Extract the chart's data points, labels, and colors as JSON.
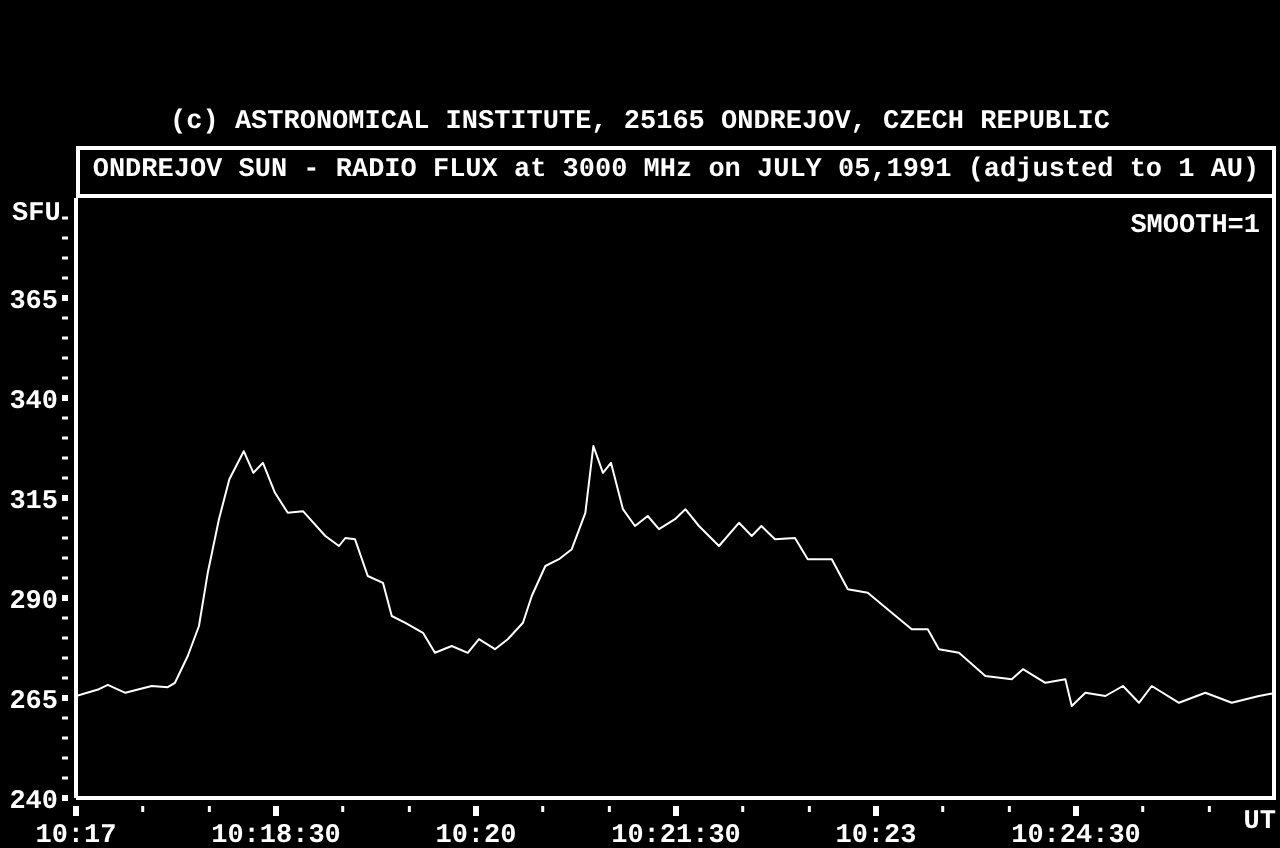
{
  "chart_data": {
    "type": "line",
    "title": "ONDREJOV SUN - RADIO FLUX at 3000 MHz on JULY 05,1991 (adjusted to 1 AU)",
    "annotations": [
      "(c) ASTRONOMICAL INSTITUTE, 25165 ONDREJOV, CZECH REPUBLIC",
      "SMOOTH=1"
    ],
    "xlabel": "UT",
    "ylabel": "SFU",
    "marker": "none",
    "line_style": "solid",
    "x": [
      10.28333,
      10.2862,
      10.2873,
      10.2895,
      10.2912,
      10.2928,
      10.2948,
      10.2957,
      10.2973,
      10.2987,
      10.2998,
      10.3012,
      10.3025,
      10.3043,
      10.3055,
      10.3067,
      10.3082,
      10.3098,
      10.3117,
      10.3145,
      10.3162,
      10.317,
      10.3182,
      10.3198,
      10.3217,
      10.3228,
      10.3245,
      10.3267,
      10.3282,
      10.3303,
      10.3323,
      10.3337,
      10.3357,
      10.3373,
      10.3392,
      10.3403,
      10.342,
      10.3437,
      10.3453,
      10.347,
      10.348,
      10.3492,
      10.3502,
      10.3517,
      10.3532,
      10.3548,
      10.3562,
      10.3582,
      10.3595,
      10.3612,
      10.3637,
      10.3662,
      10.3678,
      10.369,
      10.3707,
      10.3732,
      10.3748,
      10.3778,
      10.3798,
      10.3823,
      10.3853,
      10.3878,
      10.3898,
      10.3912,
      10.3937,
      10.397,
      10.4003,
      10.4017,
      10.4045,
      10.407,
      10.4078,
      10.4095,
      10.412,
      10.4142,
      10.4162,
      10.4178,
      10.4212,
      10.4245,
      10.4278,
      10.4312,
      10.4333
    ],
    "series": [
      {
        "color": "#ffffff",
        "values": [
          265.5,
          267.2,
          268.3,
          266.3,
          267.2,
          268,
          267.7,
          268.8,
          275.5,
          283,
          296.3,
          309.7,
          319.7,
          326.7,
          321.3,
          323.8,
          316.3,
          311.3,
          311.7,
          305.5,
          303,
          305,
          304.7,
          295.5,
          293.8,
          285.5,
          283.8,
          281.3,
          276.3,
          278,
          276.3,
          279.7,
          277.2,
          279.7,
          283.8,
          290.5,
          298,
          299.7,
          302.2,
          311.3,
          328,
          321.3,
          323.8,
          312.2,
          308,
          310.5,
          307.2,
          309.7,
          312.2,
          308,
          303,
          308.8,
          305.5,
          308,
          304.7,
          305,
          299.7,
          299.7,
          292.2,
          291.3,
          286.3,
          282.2,
          282.2,
          277.2,
          276.3,
          270.5,
          269.7,
          272.2,
          268.8,
          269.7,
          263,
          266.3,
          265.5,
          268,
          263.8,
          268,
          263.8,
          266.3,
          263.8,
          265.5,
          266.3
        ]
      }
    ],
    "xlim": [
      10.28333,
      10.43333
    ],
    "xticks": [
      {
        "value": 10.28333,
        "label": "10:17"
      },
      {
        "value": 10.29167,
        "label": null
      },
      {
        "value": 10.3,
        "label": null
      },
      {
        "value": 10.30833,
        "label": "10:18:30"
      },
      {
        "value": 10.31667,
        "label": null
      },
      {
        "value": 10.325,
        "label": null
      },
      {
        "value": 10.33333,
        "label": "10:20"
      },
      {
        "value": 10.34167,
        "label": null
      },
      {
        "value": 10.35,
        "label": null
      },
      {
        "value": 10.35833,
        "label": "10:21:30"
      },
      {
        "value": 10.36667,
        "label": null
      },
      {
        "value": 10.375,
        "label": null
      },
      {
        "value": 10.38333,
        "label": "10:23"
      },
      {
        "value": 10.39167,
        "label": null
      },
      {
        "value": 10.4,
        "label": null
      },
      {
        "value": 10.40833,
        "label": "10:24:30"
      },
      {
        "value": 10.41667,
        "label": null
      },
      {
        "value": 10.425,
        "label": null
      }
    ],
    "ylim": [
      240,
      390
    ],
    "yticks": [
      240,
      {
        "value": 245,
        "label": null
      },
      {
        "value": 250,
        "label": null
      },
      {
        "value": 255,
        "label": null
      },
      {
        "value": 260,
        "label": null
      },
      265,
      {
        "value": 270,
        "label": null
      },
      {
        "value": 275,
        "label": null
      },
      {
        "value": 280,
        "label": null
      },
      {
        "value": 285,
        "label": null
      },
      290,
      {
        "value": 295,
        "label": null
      },
      {
        "value": 300,
        "label": null
      },
      {
        "value": 305,
        "label": null
      },
      {
        "value": 310,
        "label": null
      },
      315,
      {
        "value": 320,
        "label": null
      },
      {
        "value": 325,
        "label": null
      },
      {
        "value": 330,
        "label": null
      },
      {
        "value": 335,
        "label": null
      },
      340,
      {
        "value": 345,
        "label": null
      },
      {
        "value": 350,
        "label": null
      },
      {
        "value": 355,
        "label": null
      },
      {
        "value": 360,
        "label": null
      },
      365,
      {
        "value": 370,
        "label": null
      },
      {
        "value": 375,
        "label": null
      },
      {
        "value": 380,
        "label": null
      },
      {
        "value": 385,
        "label": null
      }
    ]
  }
}
